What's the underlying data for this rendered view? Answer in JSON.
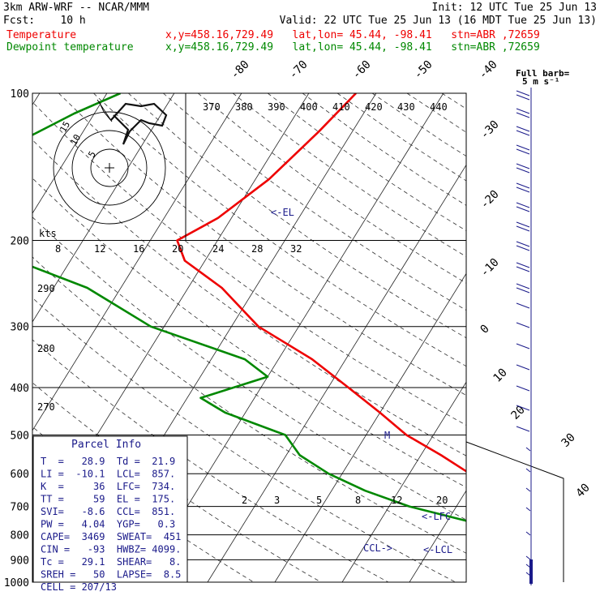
{
  "header": {
    "model": "3km ARW-WRF -- NCAR/MMM",
    "init": "Init: 12 UTC Tue 25 Jun 13",
    "fcst": "Fcst:    10 h",
    "valid": "Valid: 22 UTC Tue 25 Jun 13 (16 MDT Tue 25 Jun 13)",
    "temp_label": "Temperature",
    "temp_info": "x,y=458.16,729.49   lat,lon= 45.44, -98.41   stn=ABR ,72659",
    "dew_label": "Dewpoint temperature",
    "dew_info": "x,y=458.16,729.49   lat,lon= 45.44, -98.41   stn=ABR ,72659"
  },
  "full_barb_label": "Full barb=",
  "full_barb_value": "5 m s⁻¹",
  "hodo_label": "kts",
  "hodo_rings": [
    "5",
    "10",
    "15"
  ],
  "colors": {
    "temperature": "#ee0000",
    "dewpoint": "#008800",
    "annotation": "#1a1a8a",
    "hodograph": "#111111"
  },
  "chart_data": {
    "type": "line",
    "diagram": "skew-T log-P",
    "pressure_levels": [
      "100",
      "200",
      "300",
      "400",
      "500",
      "600",
      "700",
      "800",
      "900",
      "1000"
    ],
    "isotherm_labels": [
      "-80",
      "-70",
      "-60",
      "-50",
      "-40",
      "-30",
      "-20",
      "-10",
      "0",
      "10",
      "20",
      "30",
      "40"
    ],
    "theta_labels": [
      "370",
      "380",
      "390",
      "400",
      "410",
      "420",
      "430",
      "440"
    ],
    "theta_side_labels": [
      "290",
      "280",
      "270"
    ],
    "mixing_ratio_top": [
      "8",
      "12",
      "16",
      "20",
      "24",
      "28",
      "32"
    ],
    "mixing_ratio_bottom": [
      "2",
      "3",
      "5",
      "8",
      "12",
      "20"
    ],
    "series": [
      {
        "name": "Temperature",
        "points": [
          [
            100,
            -53
          ],
          [
            120,
            -55
          ],
          [
            150,
            -58
          ],
          [
            180,
            -62
          ],
          [
            200,
            -66
          ],
          [
            220,
            -63
          ],
          [
            250,
            -55
          ],
          [
            300,
            -46
          ],
          [
            350,
            -35
          ],
          [
            400,
            -27
          ],
          [
            450,
            -20
          ],
          [
            500,
            -14
          ],
          [
            550,
            -7
          ],
          [
            600,
            -1
          ],
          [
            650,
            5
          ],
          [
            700,
            10
          ],
          [
            750,
            14
          ],
          [
            800,
            18
          ],
          [
            850,
            20
          ],
          [
            900,
            23
          ],
          [
            950,
            27
          ],
          [
            960,
            28.9
          ]
        ]
      },
      {
        "name": "Dewpoint temperature",
        "points": [
          [
            100,
            -88
          ],
          [
            110,
            -93
          ],
          [
            130,
            -100
          ],
          [
            150,
            -100
          ],
          [
            170,
            -97
          ],
          [
            190,
            -92
          ],
          [
            200,
            -90
          ],
          [
            220,
            -88
          ],
          [
            250,
            -75
          ],
          [
            300,
            -62
          ],
          [
            350,
            -45
          ],
          [
            380,
            -40
          ],
          [
            420,
            -48
          ],
          [
            450,
            -43
          ],
          [
            500,
            -32
          ],
          [
            550,
            -28
          ],
          [
            600,
            -22
          ],
          [
            650,
            -15
          ],
          [
            700,
            -7
          ],
          [
            750,
            3
          ],
          [
            800,
            16
          ],
          [
            830,
            19
          ],
          [
            850,
            21
          ],
          [
            900,
            21.5
          ],
          [
            930,
            21.9
          ]
        ]
      }
    ],
    "annotations": [
      "<-EL",
      "M",
      "<-LFC",
      "<-LCL",
      "CCL->"
    ]
  },
  "parcel": {
    "title": "Parcel Info",
    "rows": [
      "T  =   28.9  Td =  21.9",
      "LI =  -10.1  LCL=  857.",
      "K  =     36  LFC=  734.",
      "TT =     59  EL =  175.",
      "SVI=   -8.6  CCL=  851.",
      "PW =   4.04  YGP=   0.3",
      "CAPE=  3469  SWEAT=  451",
      "CIN =   -93  HWBZ= 4099.",
      "Tc =   29.1  SHEAR=   8.",
      "SREH =   50  LAPSE=  8.5",
      "CELL = 207/13"
    ]
  }
}
